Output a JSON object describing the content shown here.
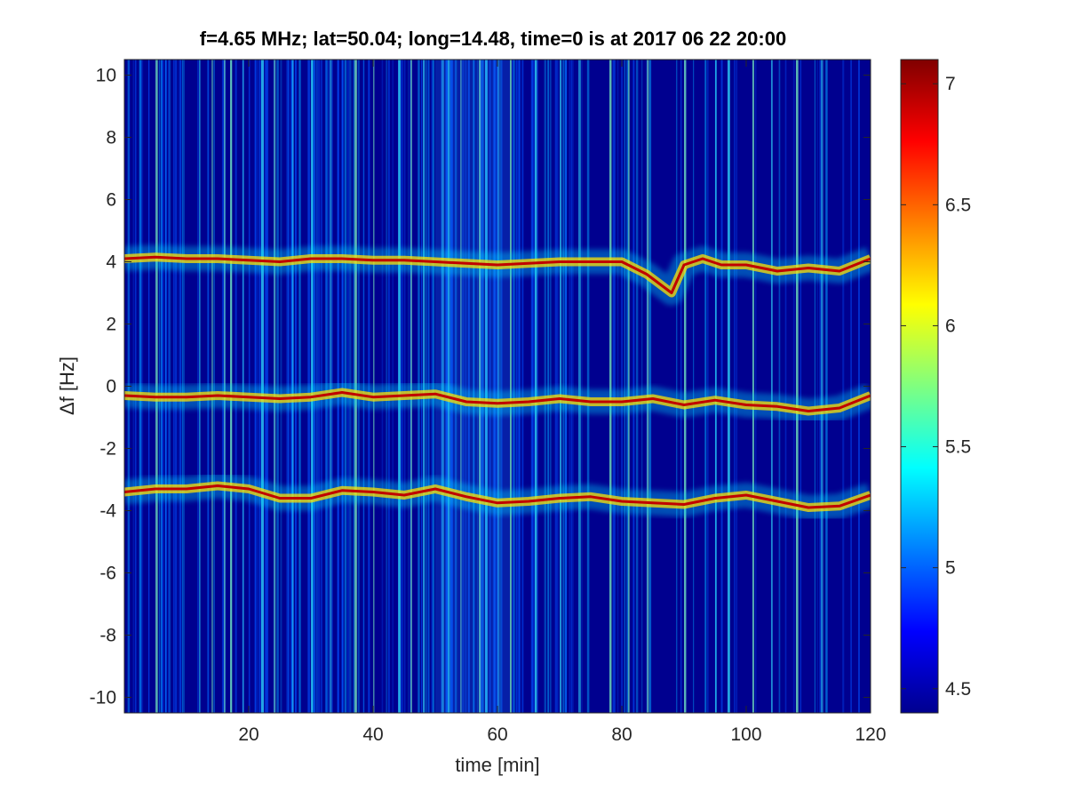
{
  "chart_data": {
    "type": "heatmap",
    "title": "f=4.65 MHz;  lat=50.04; long=14.48, time=0 is at 2017 06 22 20:00",
    "xlabel": "time [min]",
    "ylabel": "Δf [Hz]",
    "xlim": [
      0,
      120
    ],
    "ylim": [
      -10.5,
      10.5
    ],
    "xticks": [
      20,
      40,
      60,
      80,
      100,
      120
    ],
    "yticks": [
      10,
      8,
      6,
      4,
      2,
      0,
      -2,
      -4,
      -6,
      -8,
      -10
    ],
    "colorbar": {
      "colormap": "jet",
      "range": [
        4.4,
        7.1
      ],
      "ticks": [
        4.5,
        5,
        5.5,
        6,
        6.5,
        7
      ]
    },
    "traces": [
      {
        "t": [
          0,
          5,
          10,
          15,
          20,
          25,
          30,
          35,
          40,
          45,
          50,
          55,
          60,
          65,
          70,
          75,
          80,
          84,
          88,
          90,
          93,
          96,
          100,
          105,
          110,
          115,
          120
        ],
        "f": [
          4.1,
          4.15,
          4.1,
          4.1,
          4.05,
          4.0,
          4.1,
          4.1,
          4.05,
          4.05,
          4.0,
          3.95,
          3.9,
          3.95,
          4.0,
          4.0,
          4.0,
          3.6,
          3.0,
          3.9,
          4.1,
          3.9,
          3.9,
          3.7,
          3.8,
          3.7,
          4.1
        ]
      },
      {
        "t": [
          0,
          5,
          10,
          15,
          20,
          25,
          30,
          35,
          40,
          45,
          50,
          55,
          60,
          65,
          70,
          75,
          80,
          85,
          90,
          95,
          100,
          105,
          110,
          115,
          120
        ],
        "f": [
          -0.3,
          -0.35,
          -0.35,
          -0.3,
          -0.35,
          -0.4,
          -0.35,
          -0.2,
          -0.35,
          -0.3,
          -0.25,
          -0.5,
          -0.55,
          -0.5,
          -0.4,
          -0.5,
          -0.5,
          -0.4,
          -0.6,
          -0.45,
          -0.6,
          -0.65,
          -0.8,
          -0.7,
          -0.3
        ]
      },
      {
        "t": [
          0,
          5,
          10,
          15,
          20,
          25,
          30,
          35,
          40,
          45,
          50,
          55,
          60,
          65,
          70,
          75,
          80,
          85,
          90,
          95,
          100,
          105,
          110,
          115,
          120
        ],
        "f": [
          -3.4,
          -3.3,
          -3.3,
          -3.2,
          -3.3,
          -3.6,
          -3.6,
          -3.35,
          -3.4,
          -3.5,
          -3.3,
          -3.55,
          -3.75,
          -3.7,
          -3.6,
          -3.55,
          -3.7,
          -3.75,
          -3.8,
          -3.6,
          -3.5,
          -3.7,
          -3.9,
          -3.85,
          -3.5
        ]
      }
    ],
    "bright_vertical_streaks_min": [
      5,
      12,
      14,
      16,
      17,
      19,
      22,
      24,
      27,
      30,
      33,
      37,
      40,
      44,
      46,
      48,
      51,
      52,
      54,
      57,
      58,
      60,
      62,
      66,
      70,
      73,
      78,
      81,
      84,
      90,
      95,
      97,
      101,
      104,
      108,
      112
    ]
  }
}
